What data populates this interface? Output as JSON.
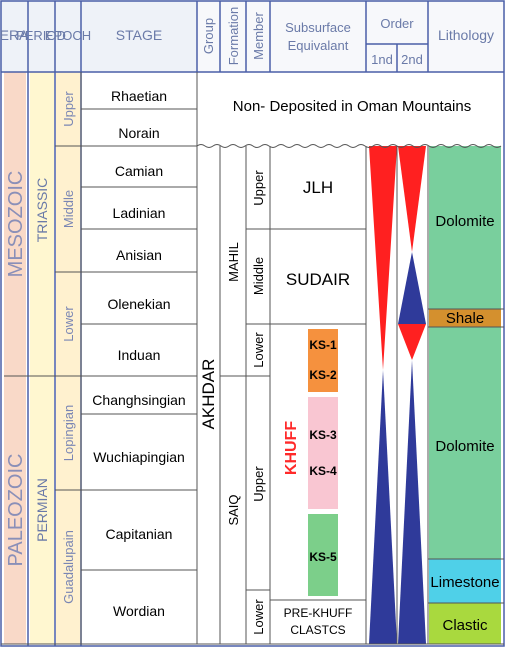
{
  "headers": {
    "era": "ERA",
    "period": "PERIOD",
    "epoch": "EPOCH",
    "stage": "STAGE",
    "group": "Group",
    "formation": "Formation",
    "member": "Member",
    "subsurface_line1": "Subsurface",
    "subsurface_line2": "Equivalant",
    "order": "Order",
    "order_1st": "1nd",
    "order_2nd": "2nd",
    "lithology": "Lithology"
  },
  "eras": {
    "mesozoic": "MESOZOIC",
    "paleozoic": "PALEOZOIC"
  },
  "periods": {
    "triassic": "TRIASSIC",
    "permian": "PERMIAN"
  },
  "epochs": {
    "upper": "Upper",
    "middle": "Middle",
    "lower": "Lower",
    "lopingian": "Lopingian",
    "guadalupain": "Guadalupain"
  },
  "stages": [
    "Rhaetian",
    "Norain",
    "Camian",
    "Ladinian",
    "Anisian",
    "Olenekian",
    "Induan",
    "Changhsingian",
    "Wuchiapingian",
    "Capitanian",
    "Wordian"
  ],
  "non_deposited": "Non- Deposited in Oman Mountains",
  "group": "AKHDAR",
  "formations": {
    "mahil": "MAHIL",
    "saiq": "SAIQ"
  },
  "members": {
    "upper_mahil": "Upper",
    "middle_mahil": "Middle",
    "lower_mahil": "Lower",
    "upper_saiq": "Upper",
    "lower_saiq": "Lower"
  },
  "subsurface": {
    "jlh": "JLH",
    "sudair": "SUDAIR",
    "khuff": "KHUFF",
    "pre_khuff_line1": "PRE-KHUFF",
    "pre_khuff_line2": "CLASTCS",
    "ks1": "KS-1",
    "ks2": "KS-2",
    "ks3": "KS-3",
    "ks4": "KS-4",
    "ks5": "KS-5"
  },
  "lithology": {
    "dolomite_upper": "Dolomite",
    "shale": "Shale",
    "dolomite_lower": "Dolomite",
    "limestone": "Limestone",
    "clastic": "Clastic"
  },
  "colors": {
    "era_fill": "#f9d9c8",
    "period_fill": "#fff7d0",
    "epoch_fill": "#fff1cf",
    "border": "#4a5fa8",
    "red": "#ff2020",
    "blue": "#2f3a9a",
    "ks_orange": "#f5913e",
    "ks_pink": "#f9c6d2",
    "ks_green": "#7ccf8a",
    "dolomite": "#79cf9d",
    "shale": "#d4902e",
    "limestone": "#4fd0e8",
    "clastic": "#a9d93e",
    "khuff_text": "#ff2a2a"
  }
}
